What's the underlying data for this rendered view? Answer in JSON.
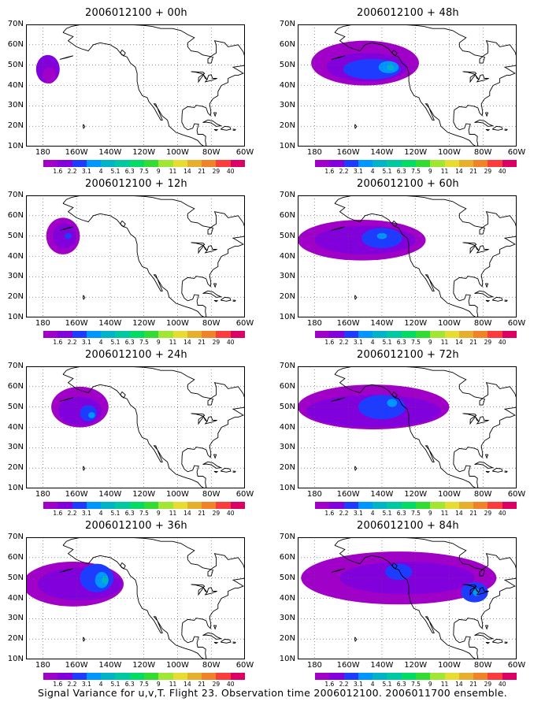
{
  "panels": [
    {
      "title": "2006012100 + 00h",
      "column": "left",
      "row": 1
    },
    {
      "title": "2006012100 + 48h",
      "column": "right",
      "row": 1
    },
    {
      "title": "2006012100 + 12h",
      "column": "left",
      "row": 2
    },
    {
      "title": "2006012100 + 60h",
      "column": "right",
      "row": 2
    },
    {
      "title": "2006012100 + 24h",
      "column": "left",
      "row": 3
    },
    {
      "title": "2006012100 + 72h",
      "column": "right",
      "row": 3
    },
    {
      "title": "2006012100 + 36h",
      "column": "left",
      "row": 4
    },
    {
      "title": "2006012100 + 84h",
      "column": "right",
      "row": 4
    }
  ],
  "map": {
    "lat_labels": [
      "70N",
      "60N",
      "50N",
      "40N",
      "30N",
      "20N",
      "10N"
    ],
    "lon_labels": [
      "180",
      "160W",
      "140W",
      "120W",
      "100W",
      "80W",
      "60W"
    ],
    "grid_lines": true,
    "grid_style": "dotted"
  },
  "colorbar": {
    "labels": [
      "1.6",
      "2.2",
      "3.1",
      "4",
      "5.1",
      "6.3",
      "7.5",
      "9",
      "11",
      "14",
      "21",
      "29",
      "40"
    ],
    "colors": [
      "#a000c8",
      "#8200dc",
      "#1e3cff",
      "#0096ff",
      "#00b4c8",
      "#00c8a0",
      "#00dc64",
      "#32dc32",
      "#a0e632",
      "#e6dc32",
      "#e6af2d",
      "#f08228",
      "#fa3c3c",
      "#dc0064"
    ]
  },
  "caption": "Signal Variance for u,v,T. Flight 23. Observation time 2006012100. 2006011700 ensemble."
}
